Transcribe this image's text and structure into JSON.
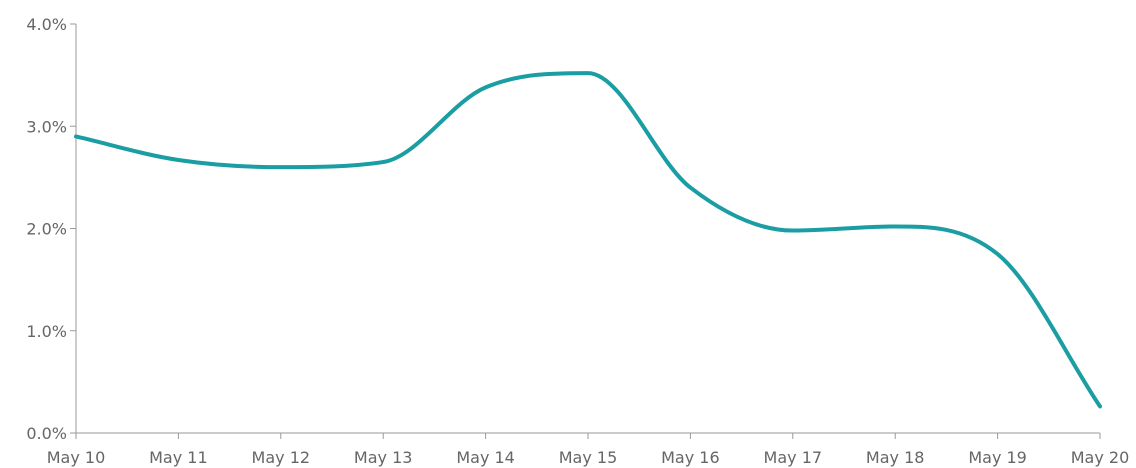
{
  "chart_data": {
    "type": "line",
    "title": "",
    "xlabel": "",
    "ylabel": "",
    "categories": [
      "May 10",
      "May 11",
      "May 12",
      "May 13",
      "May 14",
      "May 15",
      "May 16",
      "May 17",
      "May 18",
      "May 19",
      "May 20"
    ],
    "series": [
      {
        "values": [
          2.9,
          2.67,
          2.6,
          2.65,
          3.38,
          3.52,
          2.4,
          1.98,
          2.02,
          1.75,
          0.26
        ]
      }
    ],
    "ylim": [
      0,
      4
    ],
    "yticks": [
      "0.0%",
      "1.0%",
      "2.0%",
      "3.0%",
      "4.0%"
    ],
    "grid": false,
    "legend": "none",
    "colors": {
      "line": "#1A9DA3",
      "axis": "#999999",
      "text": "#666666"
    }
  }
}
